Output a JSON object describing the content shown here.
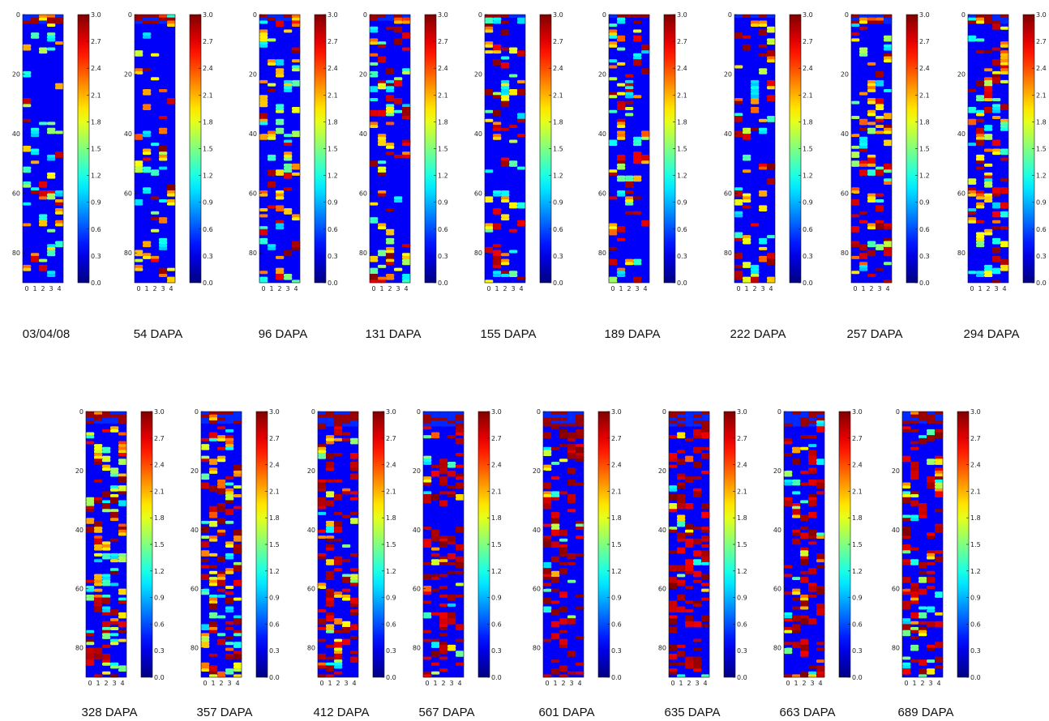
{
  "chart_data": {
    "type": "heatmap",
    "colormap": "jet",
    "grid": false,
    "legend": "colorbar-right",
    "rows": 90,
    "cols": 5,
    "xlim": [
      -0.5,
      4.5
    ],
    "ylim": [
      90,
      0
    ],
    "x_ticks": [
      "0",
      "1",
      "2",
      "3",
      "4"
    ],
    "y_ticks": [
      "0",
      "20",
      "40",
      "60",
      "80"
    ],
    "colorbar": {
      "range": [
        0.0,
        3.0
      ],
      "ticks": [
        "3.0",
        "2.7",
        "2.4",
        "2.1",
        "1.8",
        "1.5",
        "1.2",
        "0.9",
        "0.6",
        "0.3",
        "0.0"
      ]
    },
    "panels": [
      {
        "label": "03/04/08",
        "density": 0.1,
        "hot_share": 0.25,
        "top_row": 3,
        "special": [
          [
            0,
            2,
            2.1
          ],
          [
            0,
            3,
            2.2
          ],
          [
            7,
            3,
            0.9
          ],
          [
            19,
            0,
            1.0
          ],
          [
            39,
            1,
            0.8
          ],
          [
            45,
            1,
            0.9
          ],
          [
            47,
            3,
            0.8
          ],
          [
            58,
            1,
            0.9
          ],
          [
            59,
            4,
            0.8
          ],
          [
            62,
            4,
            2.0
          ],
          [
            65,
            4,
            2.1
          ],
          [
            69,
            4,
            2.2
          ],
          [
            77,
            3,
            0.8
          ],
          [
            80,
            1,
            2.1
          ],
          [
            84,
            0,
            2.2
          ],
          [
            86,
            3,
            0.8
          ]
        ]
      },
      {
        "label": "54 DAPA",
        "density": 0.1,
        "hot_share": 0.25,
        "top_row": 3,
        "special": [
          [
            0,
            3,
            2.4
          ],
          [
            0,
            4,
            1.0
          ],
          [
            2,
            4,
            2.2
          ],
          [
            6,
            1,
            0.8
          ],
          [
            18,
            0,
            2.2
          ],
          [
            39,
            1,
            0.8
          ],
          [
            45,
            1,
            2.0
          ],
          [
            47,
            3,
            2.1
          ],
          [
            58,
            1,
            0.9
          ],
          [
            59,
            4,
            2.1
          ],
          [
            62,
            4,
            2.0
          ],
          [
            77,
            3,
            0.8
          ],
          [
            80,
            1,
            2.1
          ],
          [
            84,
            0,
            2.2
          ]
        ]
      },
      {
        "label": "96 DAPA",
        "density": 0.12,
        "hot_share": 0.3,
        "top_row": 2,
        "special": [
          [
            0,
            4,
            2.2
          ],
          [
            2,
            4,
            2.5
          ],
          [
            5,
            0,
            2.1
          ],
          [
            9,
            0,
            0.9
          ],
          [
            15,
            1,
            2.1
          ],
          [
            22,
            3,
            0.8
          ],
          [
            24,
            3,
            0.9
          ],
          [
            39,
            1,
            2.2
          ],
          [
            42,
            3,
            0.8
          ],
          [
            46,
            3,
            2.1
          ],
          [
            59,
            0,
            2.3
          ],
          [
            60,
            2,
            2.1
          ],
          [
            67,
            4,
            2.1
          ],
          [
            77,
            1,
            0.8
          ]
        ]
      },
      {
        "label": "131 DAPA",
        "density": 0.16,
        "hot_share": 0.45,
        "top_row": 2,
        "special": [
          [
            1,
            4,
            2.4
          ],
          [
            1,
            3,
            2.3
          ],
          [
            4,
            0,
            0.9
          ],
          [
            8,
            0,
            2.2
          ],
          [
            22,
            2,
            0.8
          ],
          [
            24,
            2,
            0.9
          ],
          [
            36,
            0,
            2.2
          ],
          [
            40,
            1,
            2.1
          ],
          [
            43,
            2,
            2.0
          ],
          [
            59,
            1,
            2.1
          ],
          [
            61,
            3,
            0.9
          ],
          [
            70,
            1,
            2.0
          ],
          [
            78,
            2,
            2.1
          ]
        ]
      },
      {
        "label": "155 DAPA",
        "density": 0.15,
        "hot_share": 0.45,
        "top_row": 1,
        "special": [
          [
            1,
            1,
            0.9
          ],
          [
            4,
            0,
            2.2
          ],
          [
            9,
            0,
            2.1
          ],
          [
            22,
            2,
            0.8
          ],
          [
            24,
            2,
            0.9
          ],
          [
            26,
            2,
            0.8
          ],
          [
            36,
            1,
            2.1
          ],
          [
            40,
            1,
            2.2
          ],
          [
            59,
            1,
            0.9
          ],
          [
            61,
            2,
            2.1
          ],
          [
            70,
            0,
            2.0
          ],
          [
            82,
            2,
            2.1
          ],
          [
            86,
            1,
            0.8
          ]
        ]
      },
      {
        "label": "189 DAPA",
        "density": 0.15,
        "hot_share": 0.45,
        "top_row": 1,
        "special": [
          [
            1,
            1,
            0.9
          ],
          [
            5,
            0,
            2.2
          ],
          [
            9,
            0,
            2.1
          ],
          [
            13,
            3,
            0.9
          ],
          [
            22,
            2,
            0.8
          ],
          [
            24,
            2,
            0.9
          ],
          [
            26,
            2,
            0.8
          ],
          [
            36,
            1,
            2.1
          ],
          [
            40,
            1,
            2.2
          ],
          [
            59,
            1,
            0.9
          ],
          [
            61,
            2,
            2.1
          ],
          [
            70,
            0,
            2.0
          ],
          [
            82,
            2,
            2.1
          ],
          [
            86,
            1,
            0.8
          ]
        ]
      },
      {
        "label": "222 DAPA",
        "density": 0.16,
        "hot_share": 0.55,
        "top_row": 1,
        "special": [
          [
            2,
            2,
            2.2
          ],
          [
            2,
            3,
            2.1
          ],
          [
            14,
            4,
            2.2
          ],
          [
            22,
            2,
            0.8
          ],
          [
            24,
            2,
            0.9
          ],
          [
            26,
            2,
            0.8
          ],
          [
            38,
            3,
            0.9
          ],
          [
            58,
            0,
            0.9
          ],
          [
            61,
            1,
            2.1
          ],
          [
            66,
            0,
            0.8
          ],
          [
            86,
            2,
            0.8
          ]
        ]
      },
      {
        "label": "257 DAPA",
        "density": 0.18,
        "hot_share": 0.45,
        "top_row": 3,
        "special": [
          [
            1,
            1,
            2.1
          ],
          [
            1,
            2,
            2.3
          ],
          [
            1,
            3,
            2.2
          ],
          [
            10,
            4,
            0.9
          ],
          [
            14,
            4,
            2.0
          ],
          [
            22,
            2,
            2.1
          ],
          [
            24,
            2,
            2.2
          ],
          [
            28,
            2,
            2.1
          ],
          [
            32,
            2,
            2.0
          ],
          [
            38,
            4,
            2.1
          ],
          [
            43,
            1,
            0.9
          ],
          [
            58,
            0,
            2.3
          ],
          [
            60,
            2,
            2.1
          ],
          [
            70,
            2,
            2.1
          ],
          [
            84,
            1,
            0.8
          ]
        ]
      },
      {
        "label": "294 DAPA",
        "density": 0.2,
        "hot_share": 0.5,
        "top_row": 3,
        "special": [
          [
            1,
            0,
            0.9
          ],
          [
            1,
            1,
            2.1
          ],
          [
            9,
            4,
            2.2
          ],
          [
            12,
            4,
            2.3
          ],
          [
            15,
            4,
            2.1
          ],
          [
            18,
            4,
            2.2
          ],
          [
            31,
            3,
            0.8
          ],
          [
            36,
            4,
            1.2
          ],
          [
            37,
            4,
            1.1
          ],
          [
            40,
            1,
            2.2
          ],
          [
            45,
            3,
            2.0
          ],
          [
            55,
            2,
            0.8
          ],
          [
            59,
            0,
            2.2
          ],
          [
            60,
            1,
            2.3
          ],
          [
            63,
            1,
            2.1
          ],
          [
            68,
            0,
            2.1
          ],
          [
            72,
            2,
            2.0
          ],
          [
            86,
            1,
            0.8
          ]
        ]
      },
      {
        "label": "328 DAPA",
        "density": 0.25,
        "hot_share": 0.4,
        "top_row": 4,
        "special": [
          [
            0,
            1,
            2.1
          ],
          [
            5,
            3,
            2.0
          ],
          [
            10,
            4,
            2.4
          ],
          [
            12,
            4,
            2.2
          ],
          [
            14,
            1,
            2.1
          ],
          [
            18,
            2,
            2.0
          ],
          [
            25,
            3,
            0.9
          ],
          [
            38,
            4,
            2.3
          ],
          [
            40,
            4,
            2.2
          ],
          [
            42,
            1,
            2.3
          ],
          [
            45,
            2,
            2.1
          ],
          [
            48,
            3,
            0.9
          ],
          [
            53,
            3,
            1.0
          ],
          [
            55,
            2,
            0.9
          ],
          [
            57,
            1,
            2.1
          ],
          [
            59,
            0,
            1.0
          ],
          [
            62,
            1,
            2.2
          ],
          [
            66,
            2,
            0.8
          ],
          [
            70,
            3,
            2.1
          ],
          [
            74,
            0,
            0.8
          ]
        ]
      },
      {
        "label": "357 DAPA",
        "density": 0.25,
        "hot_share": 0.4,
        "top_row": 4,
        "special": [
          [
            1,
            1,
            2.2
          ],
          [
            8,
            2,
            2.1
          ],
          [
            10,
            3,
            2.3
          ],
          [
            15,
            2,
            2.0
          ],
          [
            19,
            1,
            2.1
          ],
          [
            26,
            3,
            2.2
          ],
          [
            40,
            2,
            2.1
          ],
          [
            42,
            1,
            2.2
          ],
          [
            44,
            3,
            2.0
          ],
          [
            48,
            3,
            0.9
          ],
          [
            53,
            3,
            2.2
          ],
          [
            55,
            2,
            2.3
          ],
          [
            57,
            1,
            2.1
          ],
          [
            60,
            0,
            0.9
          ],
          [
            63,
            1,
            2.2
          ],
          [
            66,
            3,
            0.8
          ],
          [
            73,
            1,
            2.1
          ]
        ]
      },
      {
        "label": "412 DAPA",
        "density": 0.22,
        "hot_share": 0.75,
        "top_row": 5,
        "special": [
          [
            8,
            1,
            2.1
          ],
          [
            12,
            0,
            2.0
          ],
          [
            26,
            3,
            2.2
          ],
          [
            58,
            0,
            2.1
          ],
          [
            61,
            2,
            2.2
          ],
          [
            62,
            3,
            2.0
          ],
          [
            85,
            2,
            0.9
          ]
        ]
      },
      {
        "label": "567 DAPA",
        "density": 0.26,
        "hot_share": 0.85,
        "top_row": 5,
        "special": [
          [
            16,
            0,
            0.9
          ],
          [
            22,
            0,
            2.0
          ],
          [
            27,
            0,
            0.8
          ]
        ]
      },
      {
        "label": "601 DAPA",
        "density": 0.26,
        "hot_share": 0.85,
        "top_row": 5,
        "special": [
          [
            18,
            0,
            2.0
          ],
          [
            27,
            0,
            2.1
          ],
          [
            12,
            0,
            0.8
          ]
        ]
      },
      {
        "label": "635 DAPA",
        "density": 0.26,
        "hot_share": 0.85,
        "top_row": 5,
        "special": [
          [
            25,
            0,
            0.9
          ]
        ]
      },
      {
        "label": "663 DAPA",
        "density": 0.24,
        "hot_share": 0.8,
        "top_row": 5,
        "special": [
          [
            3,
            4,
            0.9
          ],
          [
            23,
            0,
            0.8
          ],
          [
            60,
            1,
            2.1
          ],
          [
            62,
            2,
            2.2
          ],
          [
            68,
            0,
            0.9
          ]
        ]
      },
      {
        "label": "689 DAPA",
        "density": 0.26,
        "hot_share": 0.75,
        "top_row": 4,
        "special": [
          [
            0,
            1,
            2.1
          ],
          [
            8,
            2,
            0.9
          ],
          [
            20,
            4,
            2.2
          ],
          [
            24,
            0,
            2.1
          ],
          [
            35,
            1,
            0.9
          ],
          [
            48,
            3,
            2.1
          ],
          [
            60,
            0,
            2.3
          ],
          [
            63,
            1,
            2.0
          ],
          [
            66,
            3,
            0.9
          ],
          [
            70,
            0,
            0.8
          ],
          [
            74,
            2,
            2.0
          ],
          [
            85,
            0,
            0.9
          ]
        ]
      }
    ]
  }
}
